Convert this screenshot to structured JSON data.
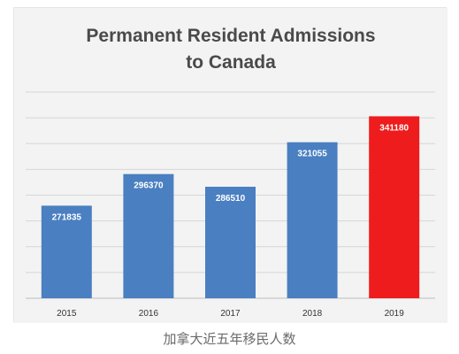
{
  "caption": "加拿大近五年移民人数",
  "chart_data": {
    "type": "bar",
    "title": "Permanent Resident Admissions to Canada",
    "title_lines": [
      "Permanent Resident Admissions",
      "to Canada"
    ],
    "categories": [
      "2015",
      "2016",
      "2017",
      "2018",
      "2019"
    ],
    "values": [
      271835,
      296370,
      286510,
      321055,
      341180
    ],
    "value_labels": [
      "271835",
      "296370",
      "286510",
      "321055",
      "341180"
    ],
    "bar_colors": [
      "#4a7fc1",
      "#4a7fc1",
      "#4a7fc1",
      "#4a7fc1",
      "#ee1c1c"
    ],
    "grid": true,
    "legend": "none",
    "ylim": [
      200000,
      360000
    ],
    "xlabel": "",
    "ylabel": ""
  }
}
